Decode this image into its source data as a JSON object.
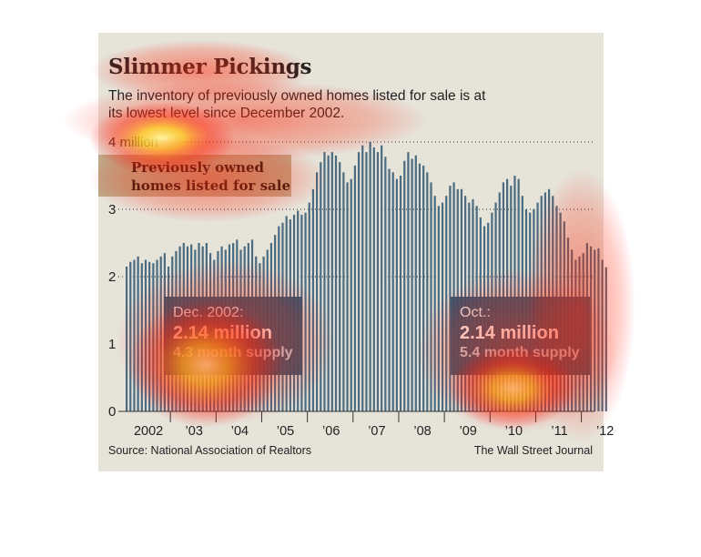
{
  "title": "Slimmer Pickings",
  "subtitle": "The inventory of previously owned homes listed for sale is at its lowest level since December 2002.",
  "legend_label_line1": "Previously owned",
  "legend_label_line2": "homes listed for sale",
  "callout_2002": {
    "date": "Dec. 2002:",
    "value": "2.14 million",
    "supply": "4.3 month supply"
  },
  "callout_oct": {
    "date": "Oct.:",
    "value": "2.14 million",
    "supply": "5.4 month supply"
  },
  "source": "Source: National Association of Realtors",
  "credit": "The Wall Street Journal",
  "colors": {
    "bar": "#4a6b80",
    "background": "#e6e3d9",
    "callout": "#30526c",
    "legend_bg": "#bfa888"
  },
  "chart_data": {
    "type": "bar",
    "title": "Slimmer Pickings",
    "ylim": [
      0,
      4
    ],
    "y_ticks": [
      {
        "value": 0,
        "label": "0"
      },
      {
        "value": 1,
        "label": "1"
      },
      {
        "value": 2,
        "label": "2"
      },
      {
        "value": 3,
        "label": "3"
      },
      {
        "value": 4,
        "label": "4 million"
      }
    ],
    "dotted_gridlines": [
      2,
      3,
      4
    ],
    "x_tick_labels": [
      "2002",
      "’03",
      "’04",
      "’05",
      "’06",
      "’07",
      "’08",
      "’09",
      "’10",
      "’11",
      "’12"
    ],
    "series": [
      {
        "values": [
          2.15,
          2.22,
          2.25,
          2.3,
          2.2,
          2.25,
          2.22,
          2.2,
          2.25,
          2.3,
          2.35,
          2.15,
          2.3,
          2.38,
          2.45,
          2.5,
          2.45,
          2.48,
          2.4,
          2.5,
          2.45,
          2.5,
          2.35,
          2.25,
          2.38,
          2.45,
          2.4,
          2.48,
          2.5,
          2.55,
          2.4,
          2.45,
          2.5,
          2.55,
          2.3,
          2.2,
          2.3,
          2.4,
          2.5,
          2.62,
          2.75,
          2.8,
          2.9,
          2.85,
          2.92,
          2.98,
          2.92,
          2.95,
          3.1,
          3.3,
          3.55,
          3.7,
          3.85,
          3.8,
          3.85,
          3.8,
          3.7,
          3.55,
          3.4,
          3.45,
          3.65,
          3.85,
          3.95,
          3.85,
          4.0,
          3.92,
          3.85,
          3.95,
          3.78,
          3.6,
          3.55,
          3.45,
          3.5,
          3.72,
          3.85,
          3.75,
          3.8,
          3.68,
          3.65,
          3.55,
          3.4,
          3.2,
          3.05,
          3.1,
          3.2,
          3.35,
          3.4,
          3.3,
          3.3,
          3.2,
          3.1,
          3.15,
          3.05,
          2.88,
          2.75,
          2.8,
          2.95,
          3.1,
          3.25,
          3.4,
          3.45,
          3.35,
          3.5,
          3.45,
          3.2,
          3.0,
          2.95,
          3.0,
          3.1,
          3.2,
          3.25,
          3.3,
          3.2,
          3.05,
          2.95,
          2.82,
          2.58,
          2.4,
          2.25,
          2.3,
          2.35,
          2.5,
          2.45,
          2.4,
          2.42,
          2.25,
          2.14
        ]
      }
    ],
    "annotations": [
      "Dec. 2002: 2.14 million, 4.3 month supply",
      "Oct.: 2.14 million, 5.4 month supply"
    ]
  }
}
